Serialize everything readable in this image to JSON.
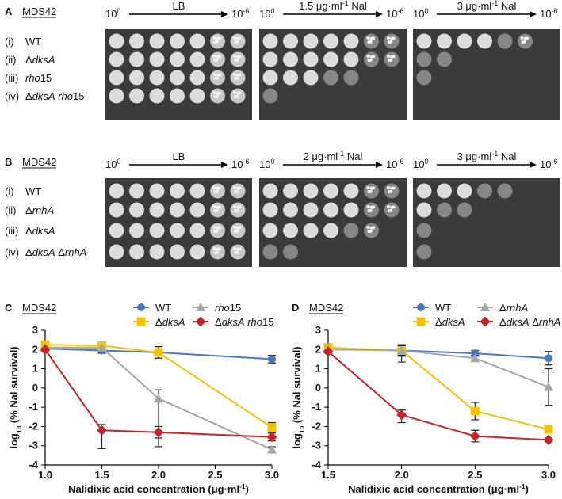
{
  "panels": [
    {
      "label": "A",
      "strain": "MDS42",
      "dilution": {
        "base": "10",
        "first_exp": "0",
        "last_exp": "-6"
      },
      "plates": [
        {
          "pre": "LB"
        },
        {
          "pre": "1.5 μg·ml",
          "sup": "-1",
          "post": " Nal"
        },
        {
          "pre": "3 μg·ml",
          "sup": "-1",
          "post": " Nal"
        }
      ],
      "rows": [
        {
          "num": "(i)",
          "genotype": "WT"
        },
        {
          "num": "(ii)",
          "genotype": "ΔdksA"
        },
        {
          "num": "(iii)",
          "genotype": "rho15"
        },
        {
          "num": "(iv)",
          "genotype": "ΔdksA rho15"
        }
      ]
    },
    {
      "label": "B",
      "strain": "MDS42",
      "dilution": {
        "base": "10",
        "first_exp": "0",
        "last_exp": "-6"
      },
      "plates": [
        {
          "pre": "LB"
        },
        {
          "pre": "2 μg·ml",
          "sup": "-1",
          "post": " Nal"
        },
        {
          "pre": "3 μg·ml",
          "sup": "-1",
          "post": " Nal"
        }
      ],
      "rows": [
        {
          "num": "(i)",
          "genotype": "WT"
        },
        {
          "num": "(ii)",
          "genotype": "ΔrnhA"
        },
        {
          "num": "(iii)",
          "genotype": "ΔdksA"
        },
        {
          "num": "(iv)",
          "genotype": "ΔdksA ΔrnhA"
        }
      ]
    }
  ],
  "chart_data": [
    {
      "type": "line",
      "label": "C",
      "strain": "MDS42",
      "x_label": {
        "pre": "Nalidixic acid concentration (μg·ml",
        "sup": "-1",
        "post": ")"
      },
      "y_label": {
        "pre": "log",
        "sub": "10",
        "post": " (% Nal survival)"
      },
      "xlim": [
        1,
        3
      ],
      "xticks": [
        {
          "value": 1,
          "label": "1.0"
        },
        1.5,
        {
          "value": 2,
          "label": "2.0"
        },
        2.5,
        {
          "value": 3,
          "label": "3.0"
        }
      ],
      "ylim": [
        -4,
        3
      ],
      "yticks": [
        -4,
        -3,
        -2,
        -1,
        0,
        1,
        2,
        3
      ],
      "x": [
        1,
        1.5,
        2,
        3
      ],
      "series": [
        {
          "name": "WT",
          "color": "#4a78bf",
          "marker": "circle",
          "values": [
            2.05,
            1.95,
            1.85,
            1.5
          ],
          "err_low": [
            0.1,
            0.15,
            0.1,
            0.2
          ],
          "err_high": [
            0.1,
            0.15,
            0.1,
            0.2
          ]
        },
        {
          "name": "ΔdksA",
          "color": "#f5c400",
          "marker": "square",
          "values": [
            2.25,
            2.2,
            1.85,
            -2.05
          ],
          "err_low": [
            0.15,
            0.2,
            0.3,
            0.25
          ],
          "err_high": [
            0.15,
            0.2,
            0.3,
            0.25
          ]
        },
        {
          "name": "rho15",
          "color": "#a6a6a6",
          "marker": "triangle",
          "values": [
            2.1,
            2.1,
            -0.55,
            -3.2
          ],
          "err_low": [
            0.1,
            0.2,
            2.5,
            0.15
          ],
          "err_high": [
            0.1,
            0.2,
            0.45,
            0.15
          ]
        },
        {
          "name": "ΔdksA rho15",
          "color": "#c8232c",
          "marker": "diamond",
          "values": [
            2,
            -2.2,
            -2.3,
            -2.55
          ],
          "err_low": [
            0.1,
            0.95,
            0.3,
            0.2
          ],
          "err_high": [
            0.1,
            0.3,
            0.3,
            0.2
          ]
        }
      ]
    },
    {
      "type": "line",
      "label": "D",
      "strain": "MDS42",
      "x_label": {
        "pre": "Nalidixic acid concentration (μg·ml",
        "sup": "-1",
        "post": ")"
      },
      "y_label": {
        "pre": "log",
        "sub": "10",
        "post": " (% Nal survival)"
      },
      "xlim": [
        1.5,
        3
      ],
      "xticks": [
        1.5,
        {
          "value": 2,
          "label": "2.0"
        },
        2.5,
        {
          "value": 3,
          "label": "3.0"
        }
      ],
      "ylim": [
        -4,
        3
      ],
      "yticks": [
        -4,
        -3,
        -2,
        -1,
        0,
        1,
        2,
        3
      ],
      "x": [
        1.5,
        2,
        2.5,
        3
      ],
      "series": [
        {
          "name": "WT",
          "color": "#4a78bf",
          "marker": "circle",
          "values": [
            2.05,
            1.95,
            1.8,
            1.55
          ],
          "err_low": [
            0.1,
            0.3,
            0.15,
            0.35
          ],
          "err_high": [
            0.1,
            0.3,
            0.15,
            0.35
          ]
        },
        {
          "name": "ΔdksA",
          "color": "#f5c400",
          "marker": "square",
          "values": [
            2.1,
            1.95,
            -1.2,
            -2.15
          ],
          "err_low": [
            0.2,
            0.6,
            0.45,
            0.2
          ],
          "err_high": [
            0.2,
            0.3,
            0.45,
            0.2
          ]
        },
        {
          "name": "ΔrnhA",
          "color": "#a6a6a6",
          "marker": "triangle",
          "values": [
            2,
            1.95,
            1.55,
            0.05
          ],
          "err_low": [
            0.1,
            0.25,
            0.15,
            0.95
          ],
          "err_high": [
            0.1,
            0.25,
            0.15,
            0.95
          ]
        },
        {
          "name": "ΔdksA ΔrnhA",
          "color": "#c8232c",
          "marker": "diamond",
          "values": [
            1.9,
            -1.4,
            -2.5,
            -2.7
          ],
          "err_low": [
            0.1,
            0.4,
            0.3,
            0.1
          ],
          "err_high": [
            0.1,
            0.25,
            0.3,
            0.1
          ]
        }
      ]
    }
  ]
}
